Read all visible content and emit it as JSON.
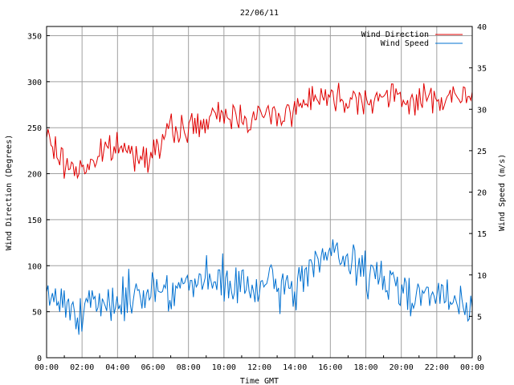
{
  "chart_data": {
    "type": "line",
    "title": "22/06/11",
    "xlabel": "Time GMT",
    "ylabel_left": "Wind Direction (Degrees)",
    "ylabel_right": "Wind Speed (m/s)",
    "x_tick_labels": [
      "00:00",
      "02:00",
      "04:00",
      "06:00",
      "08:00",
      "10:00",
      "12:00",
      "14:00",
      "16:00",
      "18:00",
      "20:00",
      "22:00",
      "00:00"
    ],
    "x_range_hours": [
      0,
      24
    ],
    "y_left_ticks": [
      "0",
      "50",
      "100",
      "150",
      "200",
      "250",
      "300",
      "350"
    ],
    "y_left_range": [
      0,
      360
    ],
    "y_right_ticks": [
      "0",
      "5",
      "10",
      "15",
      "20",
      "25",
      "30",
      "35",
      "40"
    ],
    "y_right_range": [
      0,
      40
    ],
    "grid": true,
    "legend_position": "top-right",
    "series": [
      {
        "name": "Wind Direction",
        "axis": "left",
        "color": "#e00000",
        "hours": [
          0,
          1,
          2,
          3,
          4,
          5,
          6,
          7,
          8,
          9,
          10,
          11,
          12,
          13,
          14,
          15,
          16,
          17,
          18,
          19,
          20,
          21,
          22,
          23,
          24
        ],
        "values": [
          240,
          210,
          205,
          220,
          230,
          220,
          225,
          245,
          250,
          255,
          265,
          262,
          262,
          265,
          268,
          288,
          282,
          283,
          282,
          283,
          281,
          280,
          282,
          283,
          281
        ]
      },
      {
        "name": "Wind Speed",
        "axis": "right",
        "color": "#0070d0",
        "hours": [
          0,
          1,
          2,
          3,
          4,
          5,
          6,
          7,
          8,
          9,
          10,
          11,
          12,
          13,
          14,
          15,
          16,
          17,
          18,
          19,
          20,
          21,
          22,
          23,
          24
        ],
        "values": [
          7.5,
          6.5,
          6.0,
          5.8,
          7.0,
          7.5,
          8.5,
          8.5,
          8.8,
          9.0,
          9.0,
          8.5,
          8.3,
          8.5,
          8.0,
          12.0,
          12.5,
          11.5,
          10.5,
          9.0,
          8.5,
          8.0,
          7.5,
          6.5,
          5.5
        ]
      }
    ]
  }
}
